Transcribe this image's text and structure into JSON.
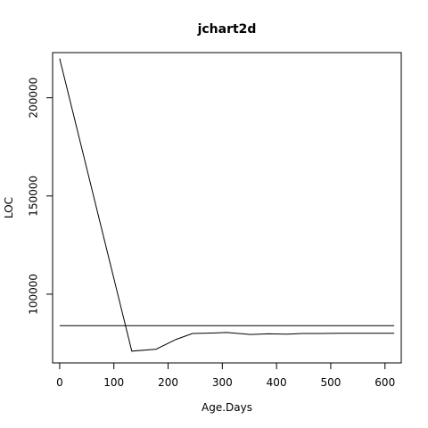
{
  "chart_data": {
    "type": "line",
    "title": "jchart2d",
    "xlabel": "Age.Days",
    "ylabel": "LOC",
    "xlim": [
      -13,
      630
    ],
    "ylim": [
      65000,
      223000
    ],
    "x_ticks": [
      0,
      100,
      200,
      300,
      400,
      500,
      600
    ],
    "y_ticks": [
      100000,
      150000,
      200000
    ],
    "grid": false,
    "legend": "none",
    "line_color": "#000000",
    "series": [
      {
        "x": [
          0,
          133,
          178,
          215,
          245,
          282,
          308,
          352,
          385,
          420,
          448,
          480,
          520,
          560,
          617
        ],
        "y": [
          220000,
          71000,
          72000,
          77000,
          80000,
          80200,
          80500,
          79500,
          79800,
          79600,
          80000,
          80000,
          80100,
          80100,
          80100
        ]
      },
      {
        "x": [
          0,
          617
        ],
        "y": [
          84000,
          84000
        ]
      }
    ]
  }
}
